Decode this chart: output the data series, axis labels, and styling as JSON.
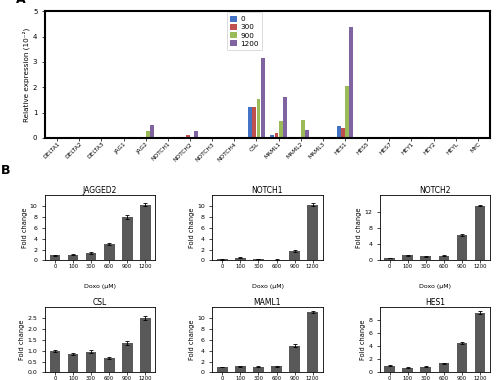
{
  "panel_A": {
    "genes": [
      "DELTA1",
      "DELTA2",
      "DELTA3",
      "JAG1",
      "JAG2",
      "NOTCH1",
      "NOTCH2",
      "NOTCH3",
      "NOTCH4",
      "CSL",
      "MAML1",
      "MAML2",
      "MAML3",
      "HES1",
      "HES5",
      "HES7",
      "HEY1",
      "HEY2",
      "HEYL",
      "MYC"
    ],
    "concentrations": [
      "0",
      "300",
      "900",
      "1200"
    ],
    "colors": [
      "#4472c4",
      "#c0504d",
      "#9bbb59",
      "#8064a2"
    ],
    "values": {
      "0": [
        0.0,
        0.0,
        0.0,
        0.0,
        0.0,
        0.0,
        0.0,
        0.0,
        0.0,
        1.2,
        0.1,
        0.0,
        0.0,
        0.45,
        0.0,
        0.0,
        0.0,
        0.0,
        0.0,
        0.0
      ],
      "300": [
        0.0,
        0.0,
        0.0,
        0.0,
        0.02,
        0.0,
        0.1,
        0.0,
        0.0,
        1.22,
        0.18,
        0.02,
        0.0,
        0.38,
        0.0,
        0.0,
        0.0,
        0.0,
        0.0,
        0.0
      ],
      "900": [
        0.0,
        0.0,
        0.0,
        0.02,
        0.25,
        0.0,
        0.0,
        0.0,
        0.0,
        1.55,
        0.65,
        0.7,
        0.0,
        2.05,
        0.0,
        0.0,
        0.0,
        0.0,
        0.0,
        0.05
      ],
      "1200": [
        0.0,
        0.0,
        0.0,
        0.0,
        0.52,
        0.0,
        0.28,
        0.0,
        0.0,
        3.15,
        1.6,
        0.3,
        0.0,
        4.4,
        0.0,
        0.0,
        0.0,
        0.0,
        0.0,
        0.05
      ]
    },
    "ylabel": "Relative expression (10⁻²)",
    "ylim": [
      0,
      5
    ],
    "yticks": [
      0,
      1,
      2,
      3,
      4,
      5
    ]
  },
  "panel_B": {
    "subplots": [
      {
        "title": "JAGGED2",
        "ylim": [
          0,
          12
        ],
        "yticks": [
          0,
          2,
          4,
          6,
          8,
          10
        ],
        "values": [
          1.0,
          1.1,
          1.4,
          3.0,
          8.0,
          10.3
        ],
        "errors": [
          0.08,
          0.1,
          0.12,
          0.2,
          0.3,
          0.25
        ]
      },
      {
        "title": "NOTCH1",
        "ylim": [
          0,
          12
        ],
        "yticks": [
          0,
          2,
          4,
          6,
          8,
          10
        ],
        "values": [
          0.2,
          0.5,
          0.3,
          0.15,
          1.7,
          10.3
        ],
        "errors": [
          0.05,
          0.08,
          0.05,
          0.04,
          0.15,
          0.3
        ]
      },
      {
        "title": "NOTCH2",
        "ylim": [
          0,
          16
        ],
        "yticks": [
          0,
          4,
          8,
          12
        ],
        "values": [
          0.6,
          1.3,
          1.0,
          1.2,
          6.2,
          13.5
        ],
        "errors": [
          0.05,
          0.1,
          0.08,
          0.1,
          0.25,
          0.2
        ]
      },
      {
        "title": "CSL",
        "ylim": [
          0,
          3
        ],
        "yticks": [
          0,
          0.5,
          1.0,
          1.5,
          2.0,
          2.5
        ],
        "values": [
          1.0,
          0.85,
          0.95,
          0.65,
          1.35,
          2.52
        ],
        "errors": [
          0.05,
          0.06,
          0.07,
          0.05,
          0.08,
          0.1
        ]
      },
      {
        "title": "MAML1",
        "ylim": [
          0,
          12
        ],
        "yticks": [
          0,
          2,
          4,
          6,
          8,
          10
        ],
        "values": [
          1.0,
          1.1,
          1.05,
          1.1,
          4.9,
          11.2
        ],
        "errors": [
          0.08,
          0.1,
          0.08,
          0.1,
          0.25,
          0.2
        ]
      },
      {
        "title": "HES1",
        "ylim": [
          0,
          10
        ],
        "yticks": [
          0,
          2,
          4,
          6,
          8
        ],
        "values": [
          1.0,
          0.7,
          0.9,
          1.4,
          4.5,
          9.2
        ],
        "errors": [
          0.08,
          0.06,
          0.07,
          0.1,
          0.2,
          0.25
        ]
      }
    ],
    "x_labels": [
      "0",
      "100",
      "300",
      "600",
      "900",
      "1200"
    ],
    "doxo_label": "Doxo (μM)",
    "ylabel": "Fold change",
    "bar_color": "#595959"
  }
}
